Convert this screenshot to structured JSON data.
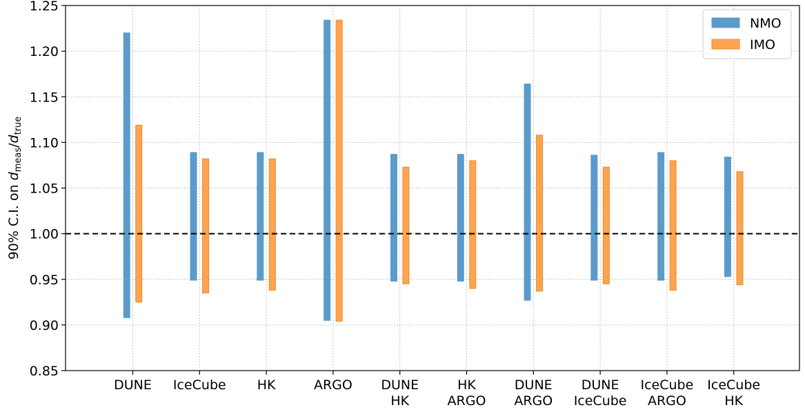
{
  "chart_data": {
    "type": "floating-bar",
    "categories": [
      [
        "DUNE"
      ],
      [
        "IceCube"
      ],
      [
        "HK"
      ],
      [
        "ARGO"
      ],
      [
        "DUNE",
        "HK"
      ],
      [
        "HK",
        "ARGO"
      ],
      [
        "DUNE",
        "ARGO"
      ],
      [
        "DUNE",
        "IceCube"
      ],
      [
        "IceCube",
        "ARGO"
      ],
      [
        "IceCube",
        "HK"
      ]
    ],
    "series": [
      {
        "name": "NMO",
        "color": "#5b9bcb",
        "edge_color": "#5b9bcb",
        "low": [
          0.908,
          0.949,
          0.949,
          0.905,
          0.948,
          0.948,
          0.927,
          0.949,
          0.949,
          0.953
        ],
        "high": [
          1.22,
          1.089,
          1.089,
          1.234,
          1.087,
          1.087,
          1.164,
          1.086,
          1.089,
          1.084
        ]
      },
      {
        "name": "IMO",
        "color": "#fda451",
        "edge_color": "#f08a2a",
        "low": [
          0.925,
          0.935,
          0.938,
          0.904,
          0.945,
          0.94,
          0.937,
          0.945,
          0.938,
          0.944
        ],
        "high": [
          1.119,
          1.082,
          1.082,
          1.234,
          1.073,
          1.08,
          1.108,
          1.073,
          1.08,
          1.068
        ]
      }
    ],
    "ylabel": {
      "prefix": "90% C.I. on ",
      "num_var": "d",
      "num_sub": "meas",
      "slash": "/",
      "den_var": "d",
      "den_sub": "true"
    },
    "ylim": [
      0.85,
      1.25
    ],
    "yticks": [
      "0.85",
      "0.90",
      "0.95",
      "1.00",
      "1.05",
      "1.10",
      "1.15",
      "1.20",
      "1.25"
    ],
    "reference_line": 1.0,
    "grid": true,
    "legend_position": "top-right"
  }
}
